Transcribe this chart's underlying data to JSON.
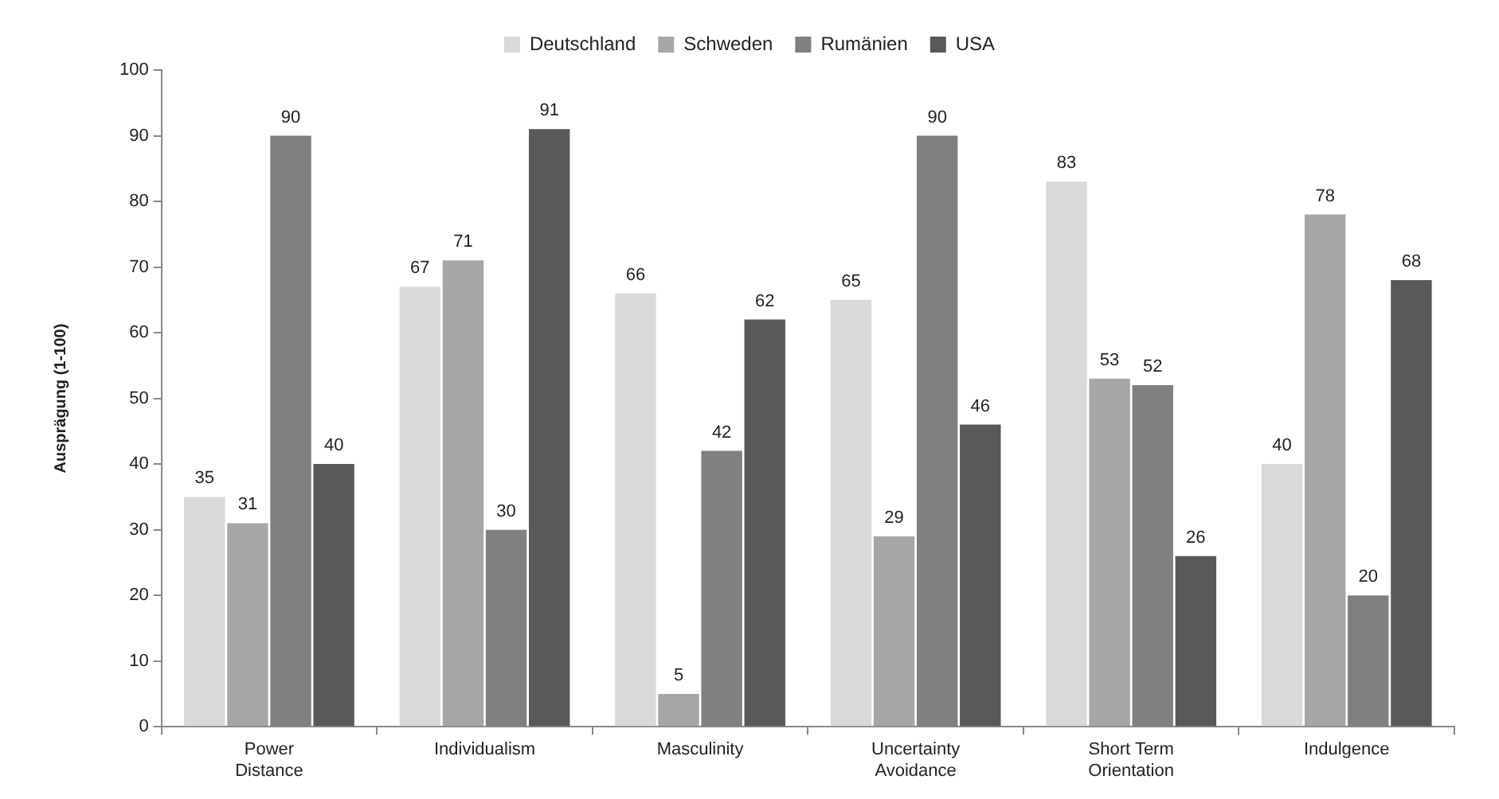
{
  "chart_data": {
    "type": "bar",
    "ylabel": "Ausprägung (1-100)",
    "categories": [
      "Power Distance",
      "Individualism",
      "Masculinity",
      "Uncertainty Avoidance",
      "Short Term Orientation",
      "Indulgence"
    ],
    "series": [
      {
        "name": "Deutschland",
        "color": "#d9d9d9",
        "values": [
          35,
          67,
          66,
          65,
          83,
          40
        ]
      },
      {
        "name": "Schweden",
        "color": "#a6a6a6",
        "values": [
          31,
          71,
          5,
          29,
          53,
          78
        ]
      },
      {
        "name": "Rumänien",
        "color": "#808080",
        "values": [
          90,
          30,
          42,
          90,
          52,
          20
        ]
      },
      {
        "name": "USA",
        "color": "#595959",
        "values": [
          40,
          91,
          62,
          46,
          26,
          68
        ]
      }
    ],
    "ylim": [
      0,
      100
    ],
    "yticks": [
      0,
      10,
      20,
      30,
      40,
      50,
      60,
      70,
      80,
      90,
      100
    ],
    "grid": false,
    "legend": "top",
    "data_labels": true
  }
}
